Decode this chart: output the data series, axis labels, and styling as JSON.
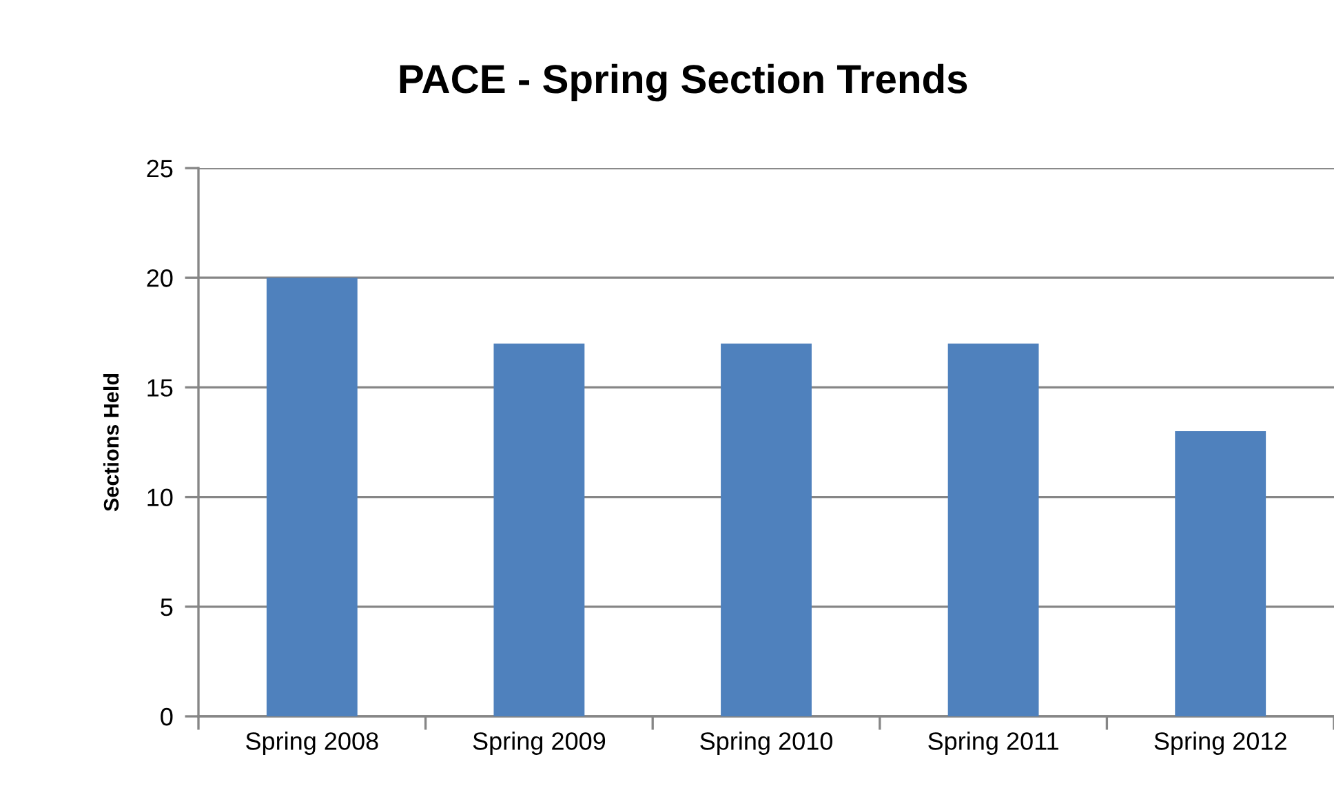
{
  "chart_data": {
    "type": "bar",
    "title": "PACE - Spring Section Trends",
    "ylabel": "Sections Held",
    "categories": [
      "Spring 2008",
      "Spring 2009",
      "Spring 2010",
      "Spring 2011",
      "Spring 2012"
    ],
    "values": [
      20,
      17,
      17,
      17,
      13
    ],
    "color": "#4f81bd",
    "ylim": [
      0,
      25
    ],
    "yticks": [
      0,
      5,
      10,
      15,
      20,
      25
    ],
    "grid": "y",
    "legend": false
  }
}
